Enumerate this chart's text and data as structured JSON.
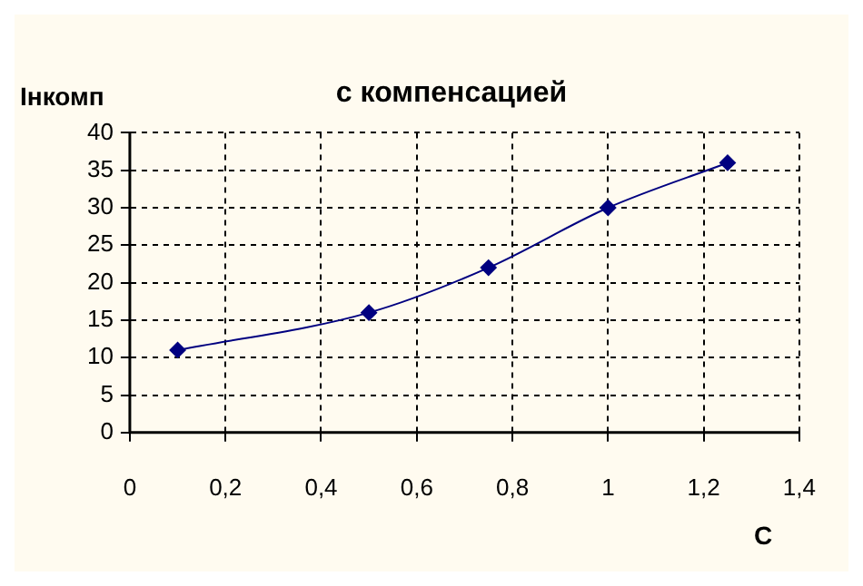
{
  "chart_data": {
    "type": "line",
    "title": "с компенсацией",
    "xlabel": "С",
    "ylabel": "Iнкомп",
    "x": [
      0.1,
      0.5,
      0.75,
      1,
      1.25
    ],
    "series": [
      {
        "color": "#000080",
        "values": [
          11,
          16,
          22,
          30,
          36
        ]
      }
    ],
    "xlim": [
      0,
      1.4
    ],
    "xticks": [
      0,
      {
        "value": 0.2,
        "label": "0,2"
      },
      {
        "value": 0.4,
        "label": "0,4"
      },
      {
        "value": 0.6,
        "label": "0,6"
      },
      {
        "value": 0.8,
        "label": "0,8"
      },
      1,
      {
        "value": 1.2,
        "label": "1,2"
      },
      {
        "value": 1.4,
        "label": "1,4"
      }
    ],
    "ylim": [
      0,
      40
    ],
    "yticks": [
      0,
      5,
      10,
      15,
      20,
      25,
      30,
      35,
      40
    ],
    "grid": true,
    "legend": false,
    "marker": "diamond",
    "line_style": "solid"
  }
}
